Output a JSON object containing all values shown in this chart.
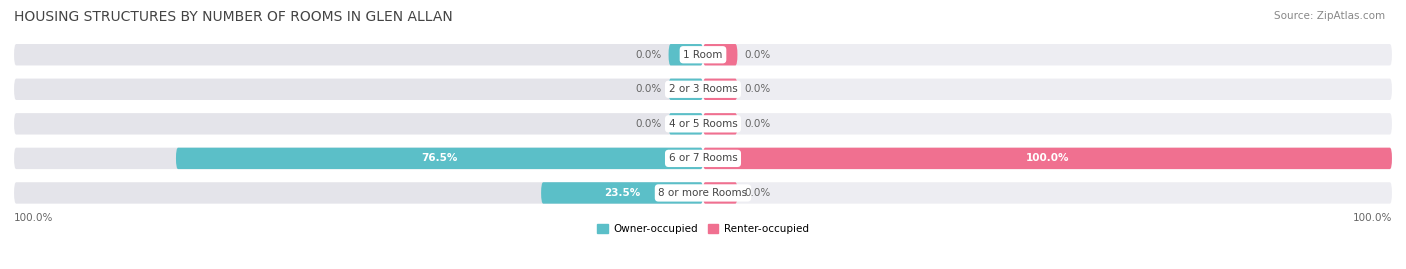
{
  "title": "HOUSING STRUCTURES BY NUMBER OF ROOMS IN GLEN ALLAN",
  "source": "Source: ZipAtlas.com",
  "categories": [
    "1 Room",
    "2 or 3 Rooms",
    "4 or 5 Rooms",
    "6 or 7 Rooms",
    "8 or more Rooms"
  ],
  "owner_values": [
    0.0,
    0.0,
    0.0,
    76.5,
    23.5
  ],
  "renter_values": [
    0.0,
    0.0,
    0.0,
    100.0,
    0.0
  ],
  "owner_color": "#5bbfc8",
  "renter_color": "#f07090",
  "bar_bg_left_color": "#e4e4ea",
  "bar_bg_right_color": "#ededf2",
  "bar_height": 0.62,
  "label_left_owner": [
    "0.0%",
    "0.0%",
    "0.0%",
    "76.5%",
    "23.5%"
  ],
  "label_right_renter": [
    "0.0%",
    "0.0%",
    "0.0%",
    "100.0%",
    "0.0%"
  ],
  "bottom_left_label": "100.0%",
  "bottom_right_label": "100.0%",
  "legend_owner": "Owner-occupied",
  "legend_renter": "Renter-occupied",
  "title_fontsize": 10,
  "source_fontsize": 7.5,
  "label_fontsize": 7.5,
  "cat_fontsize": 7.5,
  "small_stub_owner": 5.0,
  "small_stub_renter": 5.0
}
